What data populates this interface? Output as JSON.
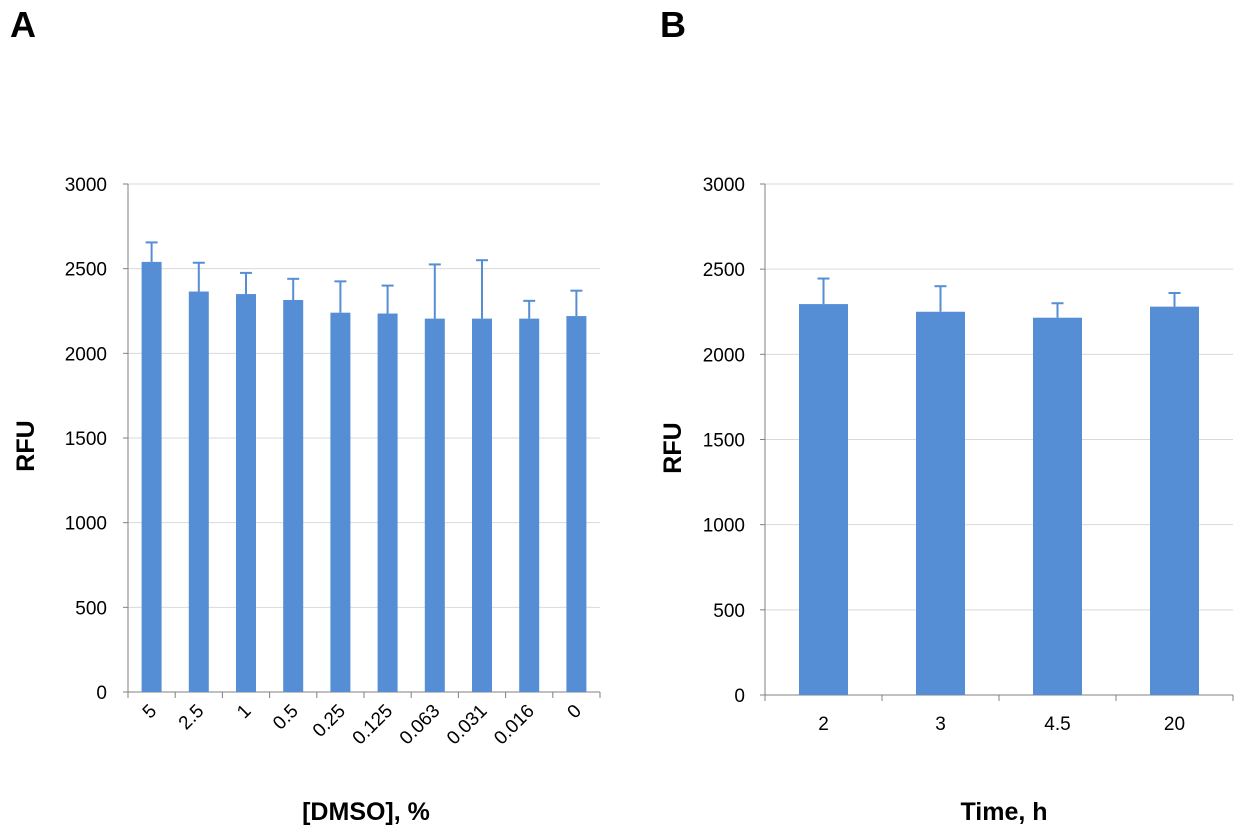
{
  "colors": {
    "bar": "#558ED5",
    "error_bar": "#558ED5",
    "grid": "#D9D9D9",
    "axis": "#808080"
  },
  "panels": {
    "a": "A",
    "b": "B"
  },
  "chart_data": [
    {
      "type": "bar",
      "panel": "A",
      "categories": [
        "5",
        "2.5",
        "1",
        "0.5",
        "0.25",
        "0.125",
        "0.063",
        "0.031",
        "0.016",
        "0"
      ],
      "values": [
        2540,
        2365,
        2350,
        2315,
        2240,
        2235,
        2205,
        2205,
        2205,
        2220
      ],
      "errors": [
        115,
        170,
        125,
        125,
        185,
        165,
        320,
        345,
        105,
        150
      ],
      "xlabel": "[DMSO], %",
      "ylabel": "RFU",
      "ylim": [
        0,
        3000
      ],
      "yticks": [
        "0",
        "500",
        "1000",
        "1500",
        "2000",
        "2500",
        "3000"
      ],
      "grid": true,
      "tick_label_rotation": "rotated",
      "legend": "none"
    },
    {
      "type": "bar",
      "panel": "B",
      "categories": [
        "2",
        "3",
        "4.5",
        "20"
      ],
      "values": [
        2295,
        2250,
        2215,
        2280
      ],
      "errors": [
        150,
        150,
        85,
        80
      ],
      "xlabel": "Time, h",
      "ylabel": "RFU",
      "ylim": [
        0,
        3000
      ],
      "yticks": [
        "0",
        "500",
        "1000",
        "1500",
        "2000",
        "2500",
        "3000"
      ],
      "grid": true,
      "tick_label_rotation": "none",
      "legend": "none"
    }
  ]
}
